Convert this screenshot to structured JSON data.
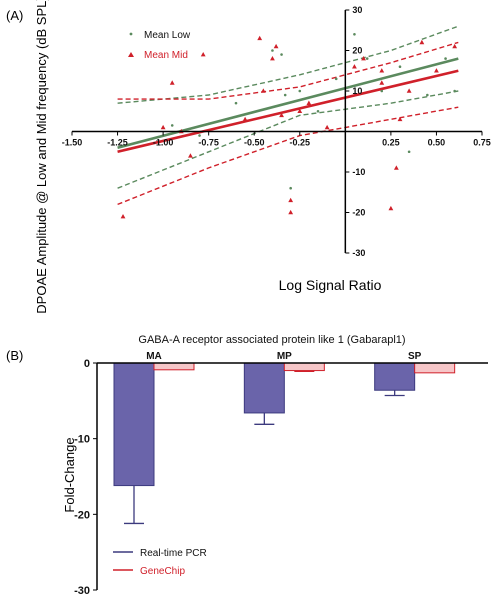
{
  "chart_data": [
    {
      "type": "scatter",
      "panel_label": "(A)",
      "xlabel": "Log Signal Ratio",
      "ylabel": "DPOAE Amplitude @ Low and Mid frequency (dB SPL)",
      "xlim": [
        -1.5,
        0.75
      ],
      "ylim": [
        -30,
        30
      ],
      "x_ticks": [
        "-1.50",
        "-1.25",
        "-1.00",
        "-0.75",
        "-0.50",
        "-0.25",
        "0.25",
        "0.50",
        "0.75"
      ],
      "y_ticks": [
        "30",
        "20",
        "10",
        "-10",
        "-20",
        "-30"
      ],
      "legend_position": "top-left",
      "colors": {
        "low": "#5b8a5e",
        "mid": "#d0202a"
      },
      "series": [
        {
          "name": "Mean Low",
          "marker": "dot",
          "points": [
            [
              -0.95,
              1.5
            ],
            [
              -0.8,
              -1
            ],
            [
              -0.4,
              20
            ],
            [
              -0.35,
              19
            ],
            [
              -0.33,
              9
            ],
            [
              -0.3,
              -14
            ],
            [
              -0.25,
              10
            ],
            [
              -0.05,
              13
            ],
            [
              0.05,
              24
            ],
            [
              0.12,
              18
            ],
            [
              0.2,
              10
            ],
            [
              0.3,
              16
            ],
            [
              0.35,
              -5
            ],
            [
              0.45,
              9
            ],
            [
              0.55,
              18
            ],
            [
              0.6,
              10
            ],
            [
              -0.6,
              7
            ],
            [
              -0.15,
              5
            ]
          ]
        },
        {
          "name": "Mean Mid",
          "marker": "triangle",
          "points": [
            [
              -1.22,
              -21
            ],
            [
              -1.0,
              1
            ],
            [
              -0.95,
              12
            ],
            [
              -0.9,
              0
            ],
            [
              -0.85,
              -6
            ],
            [
              -0.78,
              19
            ],
            [
              -0.55,
              3
            ],
            [
              -0.47,
              23
            ],
            [
              -0.45,
              10
            ],
            [
              -0.4,
              18
            ],
            [
              -0.38,
              21
            ],
            [
              -0.35,
              4
            ],
            [
              -0.3,
              -17
            ],
            [
              -0.3,
              -20
            ],
            [
              -0.25,
              5
            ],
            [
              -0.2,
              7
            ],
            [
              0.05,
              16
            ],
            [
              0.1,
              18
            ],
            [
              0.2,
              12
            ],
            [
              0.25,
              -19
            ],
            [
              0.28,
              -9
            ],
            [
              0.3,
              3
            ],
            [
              0.35,
              10
            ],
            [
              0.42,
              22
            ],
            [
              0.5,
              15
            ],
            [
              0.6,
              21
            ],
            [
              0.2,
              15
            ],
            [
              -0.1,
              1
            ]
          ]
        }
      ],
      "fits": [
        {
          "series": "Mean Low",
          "x": [
            -1.25,
            0.62
          ],
          "y": [
            -4,
            18
          ],
          "ci_upper": [
            [
              -1.25,
              7
            ],
            [
              -0.75,
              9
            ],
            [
              -0.25,
              14
            ],
            [
              0.25,
              20
            ],
            [
              0.62,
              26
            ]
          ],
          "ci_lower": [
            [
              -1.25,
              -14
            ],
            [
              -0.75,
              -5
            ],
            [
              -0.25,
              4
            ],
            [
              0.25,
              7
            ],
            [
              0.62,
              10
            ]
          ]
        },
        {
          "series": "Mean Mid",
          "x": [
            -1.25,
            0.62
          ],
          "y": [
            -5,
            15
          ],
          "ci_upper": [
            [
              -1.25,
              8
            ],
            [
              -0.75,
              8
            ],
            [
              -0.25,
              11
            ],
            [
              0.25,
              17
            ],
            [
              0.62,
              22
            ]
          ],
          "ci_lower": [
            [
              -1.25,
              -18
            ],
            [
              -0.75,
              -9
            ],
            [
              -0.25,
              -1
            ],
            [
              0.25,
              3
            ],
            [
              0.62,
              6
            ]
          ]
        }
      ]
    },
    {
      "type": "bar",
      "panel_label": "(B)",
      "title": "GABA-A receptor associated protein like 1 (Gabarapl1)",
      "ylabel": "Fold-Change",
      "ylim": [
        -30,
        0
      ],
      "y_ticks": [
        "0",
        "-10",
        "-20",
        "-30"
      ],
      "categories": [
        "MA",
        "MP",
        "SP"
      ],
      "legend_position": "bottom-left",
      "colors": {
        "pcr_fill": "#6a64aa",
        "pcr_edge": "#3c3a7e",
        "chip_fill": "#f6c6c8",
        "chip_edge": "#d0202a"
      },
      "series": [
        {
          "name": "Real-time PCR",
          "values": [
            -16.2,
            -6.6,
            -3.6
          ],
          "errors": [
            5.0,
            1.5,
            0.7
          ]
        },
        {
          "name": "GeneChip",
          "values": [
            -0.9,
            -1.0,
            -1.3
          ],
          "errors": [
            0.0,
            0.1,
            0.0
          ]
        }
      ]
    }
  ]
}
